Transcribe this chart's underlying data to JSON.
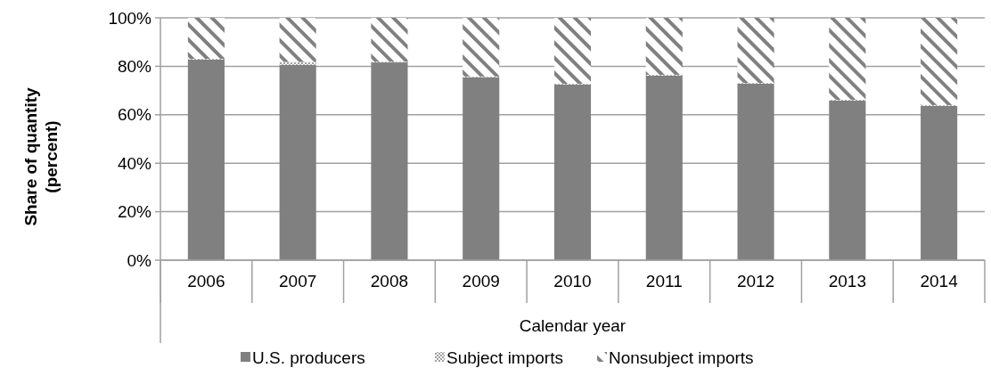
{
  "chart_data": {
    "type": "bar",
    "stacked": true,
    "xlabel": "Calendar year",
    "ylabel": "Share of quantity (percent)",
    "categories": [
      "2006",
      "2007",
      "2008",
      "2009",
      "2010",
      "2011",
      "2012",
      "2013",
      "2014"
    ],
    "series": [
      {
        "name": "U.S. producers",
        "color": "#808080",
        "values": [
          82.8,
          80.6,
          81.6,
          75.5,
          72.5,
          76.2,
          72.8,
          65.9,
          63.7
        ]
      },
      {
        "name": "Subject imports",
        "color": "#a0a0a0",
        "values": [
          0.3,
          1.2,
          0.3,
          0.3,
          0.3,
          0.3,
          0.3,
          0.3,
          0.3
        ]
      },
      {
        "name": "Nonsubject imports",
        "color": "#808080",
        "values": [
          16.9,
          18.2,
          18.1,
          24.2,
          27.2,
          23.5,
          26.9,
          33.8,
          36.0
        ]
      }
    ],
    "ylim": [
      0,
      100
    ],
    "yticks": [
      {
        "value": 0,
        "label": "0%"
      },
      {
        "value": 20,
        "label": "20%"
      },
      {
        "value": 40,
        "label": "40%"
      },
      {
        "value": 60,
        "label": "60%"
      },
      {
        "value": 80,
        "label": "80%"
      },
      {
        "value": 100,
        "label": "100%"
      }
    ],
    "grid": "y",
    "legend": "bottom"
  }
}
